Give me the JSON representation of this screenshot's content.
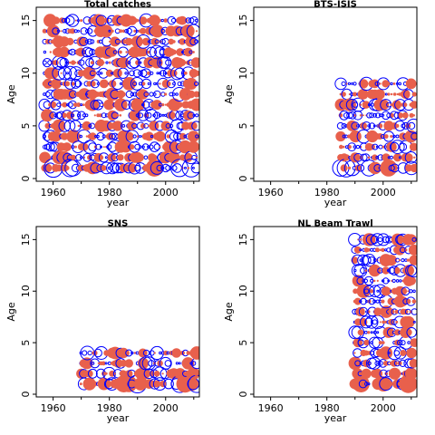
{
  "figure": {
    "marker_note": ""
  },
  "chart_data": [
    {
      "type": "scatter",
      "title": "Total catches",
      "xlabel": "year",
      "ylabel": "Age",
      "xlim": [
        1954,
        2012
      ],
      "ylim": [
        0,
        16
      ],
      "xticks": [
        1960,
        1980,
        2000
      ],
      "yticks": [
        0,
        5,
        10,
        15
      ],
      "year_range": [
        1957,
        2011
      ],
      "age_range": [
        1,
        15
      ],
      "density": 0.92,
      "positive_color": "#e8604c",
      "negative_color": "#0000ff"
    },
    {
      "type": "scatter",
      "title": "BTS-ISIS",
      "xlabel": "year",
      "ylabel": "Age",
      "xlim": [
        1954,
        2012
      ],
      "ylim": [
        0,
        16
      ],
      "xticks": [
        1960,
        1980,
        2000
      ],
      "yticks": [
        0,
        5,
        10,
        15
      ],
      "year_range": [
        1985,
        2011
      ],
      "age_range": [
        1,
        9
      ],
      "density": 0.95,
      "positive_color": "#e8604c",
      "negative_color": "#0000ff"
    },
    {
      "type": "scatter",
      "title": "SNS",
      "xlabel": "year",
      "ylabel": "Age",
      "xlim": [
        1954,
        2012
      ],
      "ylim": [
        0,
        16
      ],
      "xticks": [
        1960,
        1980,
        2000
      ],
      "yticks": [
        0,
        5,
        10,
        15
      ],
      "year_range": [
        1970,
        2011
      ],
      "age_range": [
        1,
        4
      ],
      "density": 0.85,
      "positive_color": "#e8604c",
      "negative_color": "#0000ff"
    },
    {
      "type": "scatter",
      "title": "NL Beam Trawl",
      "xlabel": "year",
      "ylabel": "Age",
      "xlim": [
        1954,
        2012
      ],
      "ylim": [
        0,
        16
      ],
      "xticks": [
        1960,
        1980,
        2000
      ],
      "yticks": [
        0,
        5,
        10,
        15
      ],
      "year_range": [
        1990,
        2011
      ],
      "age_range": [
        1,
        15
      ],
      "density": 0.95,
      "positive_color": "#e8604c",
      "negative_color": "#0000ff"
    }
  ]
}
